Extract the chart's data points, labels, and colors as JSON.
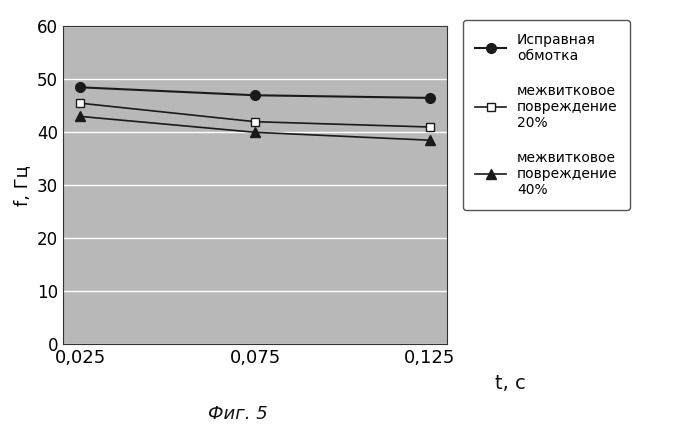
{
  "x": [
    0.025,
    0.075,
    0.125
  ],
  "x_labels": [
    "0,025",
    "0,075",
    "0,125"
  ],
  "series": [
    {
      "label": "Исправная\nобмотка",
      "y": [
        48.5,
        47.0,
        46.5
      ],
      "marker": "o",
      "color": "#1a1a1a",
      "markersize": 7,
      "linewidth": 1.5,
      "markerfacecolor": "#1a1a1a"
    },
    {
      "label": "межвитковое\nповреждение\n20%",
      "y": [
        45.5,
        42.0,
        41.0
      ],
      "marker": "s",
      "color": "#1a1a1a",
      "markersize": 6,
      "linewidth": 1.2,
      "markerfacecolor": "#ffffff"
    },
    {
      "label": "межвитковое\nповреждение\n40%",
      "y": [
        43.0,
        40.0,
        38.5
      ],
      "marker": "^",
      "color": "#1a1a1a",
      "markersize": 7,
      "linewidth": 1.2,
      "markerfacecolor": "#1a1a1a"
    }
  ],
  "ylabel": "f, Гц",
  "xlabel": "t, c",
  "ylim": [
    0,
    60
  ],
  "yticks": [
    0,
    10,
    20,
    30,
    40,
    50,
    60
  ],
  "plot_bg_color": "#b8b8b8",
  "fig_bg_color": "#ffffff",
  "legend_bg_color": "#ffffff",
  "caption": "Фиг. 5",
  "grid_color": "#ffffff",
  "grid_linewidth": 1.0
}
